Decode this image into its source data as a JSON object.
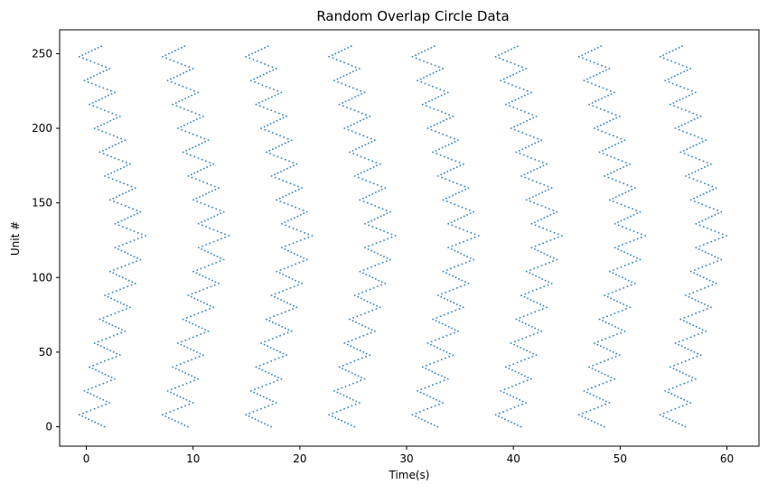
{
  "chart_data": {
    "type": "scatter",
    "marker": "vertical-line",
    "title": "Random Overlap Circle Data",
    "xlabel": "Time(s)",
    "ylabel": "Unit #",
    "xlim": [
      -2.5,
      63
    ],
    "ylim": [
      -13,
      266
    ],
    "xticks": [
      0,
      10,
      20,
      30,
      40,
      50,
      60
    ],
    "yticks": [
      0,
      50,
      100,
      150,
      200,
      250
    ],
    "grid": false,
    "legend": "none",
    "color": "#1f77b4",
    "units": 256,
    "repetitions": [
      {
        "start": 0.0,
        "end": 5.8
      },
      {
        "start": 7.8,
        "end": 13.6
      },
      {
        "start": 15.6,
        "end": 21.4
      },
      {
        "start": 23.4,
        "end": 29.2
      },
      {
        "start": 31.2,
        "end": 37.0
      },
      {
        "start": 39.0,
        "end": 44.8
      },
      {
        "start": 46.8,
        "end": 52.6
      },
      {
        "start": 54.4,
        "end": 60.2
      }
    ],
    "pattern": {
      "envelope_min_x_offset": 0.4,
      "envelope_max_x_offset": 4.9,
      "envelope_center_unit": 128,
      "zigzag_amplitude": 1.3,
      "zigzag_period_units": 16
    }
  }
}
